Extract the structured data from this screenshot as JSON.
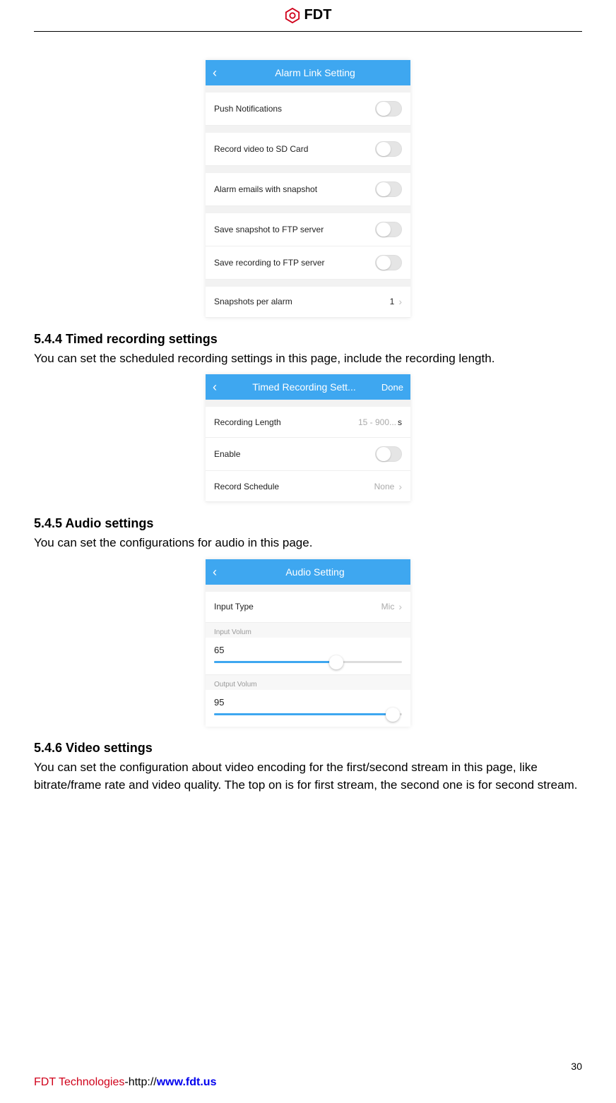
{
  "header": {
    "brand": "FDT"
  },
  "alarm": {
    "title": "Alarm Link Setting",
    "rows": {
      "push": "Push Notifications",
      "record_sd": "Record video to SD Card",
      "alarm_email": "Alarm emails with snapshot",
      "save_snap_ftp": "Save snapshot to FTP server",
      "save_rec_ftp": "Save recording to FTP server",
      "snap_per_alarm": "Snapshots per alarm",
      "snap_value": "1"
    }
  },
  "section544": {
    "heading": "5.4.4 Timed recording settings",
    "text": "You can set the scheduled recording settings in this page, include the recording length."
  },
  "timed": {
    "title": "Timed Recording Sett...",
    "done": "Done",
    "rec_len_label": "Recording Length",
    "rec_len_hint": "15 - 900...",
    "rec_len_unit": "s",
    "enable": "Enable",
    "schedule": "Record Schedule",
    "schedule_val": "None"
  },
  "section545": {
    "heading": "5.4.5 Audio settings",
    "text": "You can set the configurations for audio in this page."
  },
  "audio": {
    "title": "Audio Setting",
    "input_type": "Input Type",
    "input_type_val": "Mic",
    "input_volum_label": "Input Volum",
    "input_volum_val": "65",
    "input_volum_pct": 65,
    "output_volum_label": "Output Volum",
    "output_volum_val": "95",
    "output_volum_pct": 95
  },
  "section546": {
    "heading": "5.4.6 Video settings",
    "text": "You can set the configuration about video encoding for the first/second stream in this page, like bitrate/frame rate and video quality. The top on is for first stream, the second one is for second stream."
  },
  "footer": {
    "page": "30",
    "company": "FDT Technologies",
    "dash": "-",
    "proto": "http://",
    "url": "www.fdt.us"
  }
}
